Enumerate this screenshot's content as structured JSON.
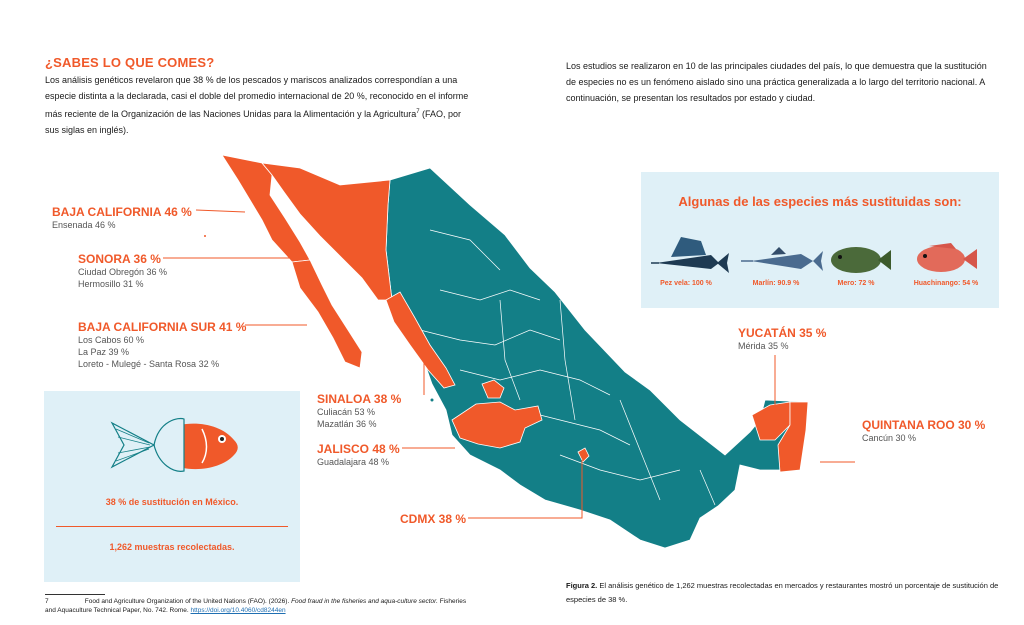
{
  "title": "¿SABES LO QUE COMES?",
  "intro_left": "Los análisis genéticos revelaron que 38 % de los pescados y mariscos analizados correspondían a una especie distinta a la declarada, casi el doble del promedio internacional de 20 %, reconocido en el informe más reciente de la Organización de las Naciones Unidas para la Alimentación y la Agricultura",
  "intro_left_sup": "7",
  "intro_left_end": " (FAO, por sus siglas en inglés).",
  "intro_right": "Los estudios se realizaron en 10 de las principales ciudades del país, lo que demuestra que la sustitución de especies no es un fenómeno aislado sino una práctica generalizada a lo largo del territorio nacional. A continuación, se presentan los resultados por estado y ciudad.",
  "states": {
    "baja_california": {
      "name": "BAJA CALIFORNIA 46 %",
      "cities": [
        "Ensenada 46 %"
      ]
    },
    "sonora": {
      "name": "SONORA 36 %",
      "cities": [
        "Ciudad Obregón 36 %",
        "Hermosillo 31 %"
      ]
    },
    "bcs": {
      "name": "BAJA CALIFORNIA SUR 41 %",
      "cities": [
        "Los Cabos 60 %",
        "La Paz 39 %",
        "Loreto - Mulegé - Santa Rosa 32 %"
      ]
    },
    "sinaloa": {
      "name": "SINALOA 38 %",
      "cities": [
        "Culiacán 53 %",
        "Mazatlán 36 %"
      ]
    },
    "jalisco": {
      "name": "JALISCO 48 %",
      "cities": [
        "Guadalajara 48 %"
      ]
    },
    "cdmx": {
      "name": "CDMX 38 %"
    },
    "yucatan": {
      "name": "YUCATÁN 35 %",
      "cities": [
        "Mérida 35 %"
      ]
    },
    "quintana_roo": {
      "name": "QUINTANA ROO 30 %",
      "cities": [
        "Cancún 30 %"
      ]
    }
  },
  "species_panel": {
    "title": "Algunas de las especies más sustituidas son:",
    "fish": [
      {
        "label": "Pez vela: 100 %",
        "icon": "sailfish-icon"
      },
      {
        "label": "Marlín: 90.9 %",
        "icon": "marlin-icon"
      },
      {
        "label": "Mero: 72 %",
        "icon": "grouper-icon"
      },
      {
        "label": "Huachinango: 54 %",
        "icon": "snapper-icon"
      }
    ]
  },
  "summary_box": {
    "line1": "38 % de sustitución en México.",
    "line2": "1,262 muestras recolectadas."
  },
  "footnote": {
    "number": "7",
    "text": "Food and Agriculture Organization of the United Nations (FAO). (2026).",
    "italic": "Food fraud in the fisheries and aqua-culture sector.",
    "text2": "Fisheries and Aquaculture Technical Paper, No. 742. Rome.",
    "link": "https://doi.org/10.4060/cd8244en"
  },
  "caption": {
    "label": "Figura 2.",
    "text": " El análisis genético de 1,262 muestras recolectadas en mercados y restaurantes mostró un porcentaje de sustitución de especies de 38 %."
  },
  "colors": {
    "orange": "#f0592a",
    "teal": "#137f87",
    "light_blue": "#dff0f7"
  }
}
